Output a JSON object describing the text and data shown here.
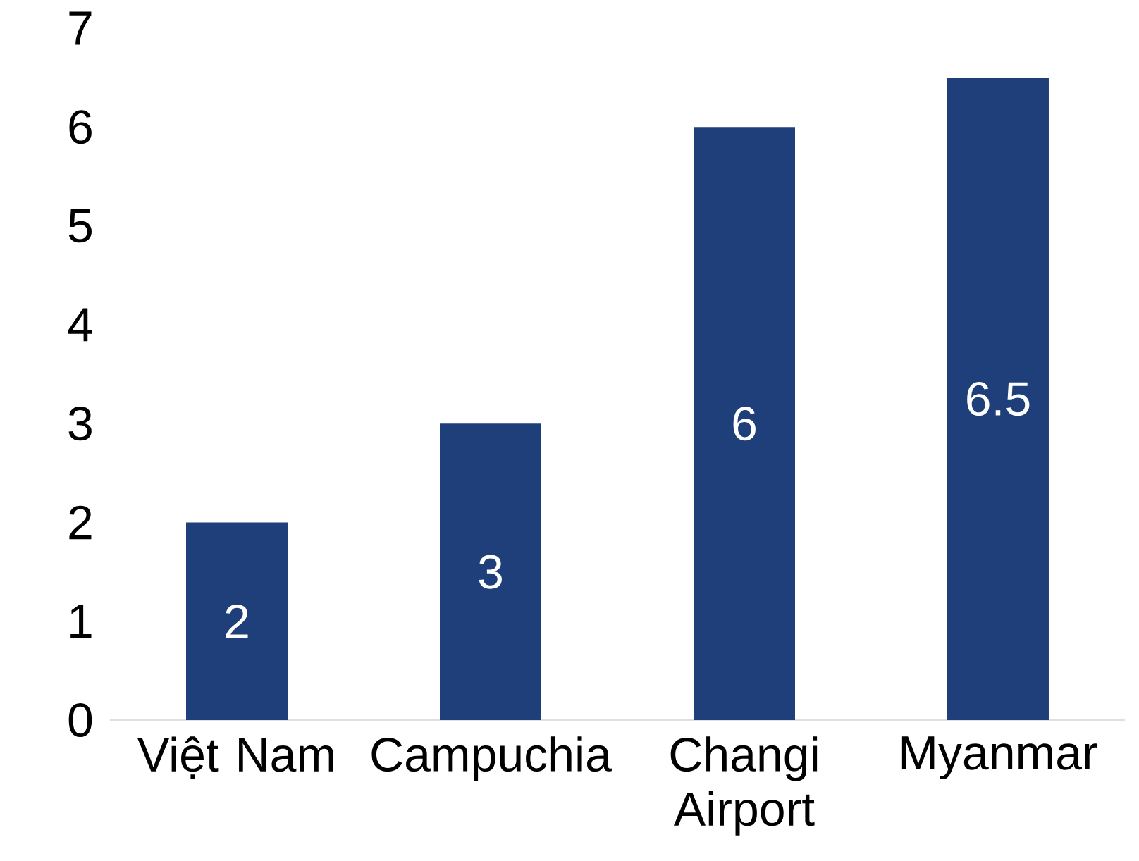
{
  "chart_data": {
    "type": "bar",
    "categories": [
      "Việt Nam",
      "Campuchia",
      "Changi Airport",
      "Myanmar"
    ],
    "values": [
      2,
      3,
      6,
      6.5
    ],
    "color": "#1f3f7b",
    "ylim": [
      0,
      7
    ],
    "yticks": [
      0,
      1,
      2,
      3,
      4,
      5,
      6,
      7
    ],
    "data_labels": true
  }
}
